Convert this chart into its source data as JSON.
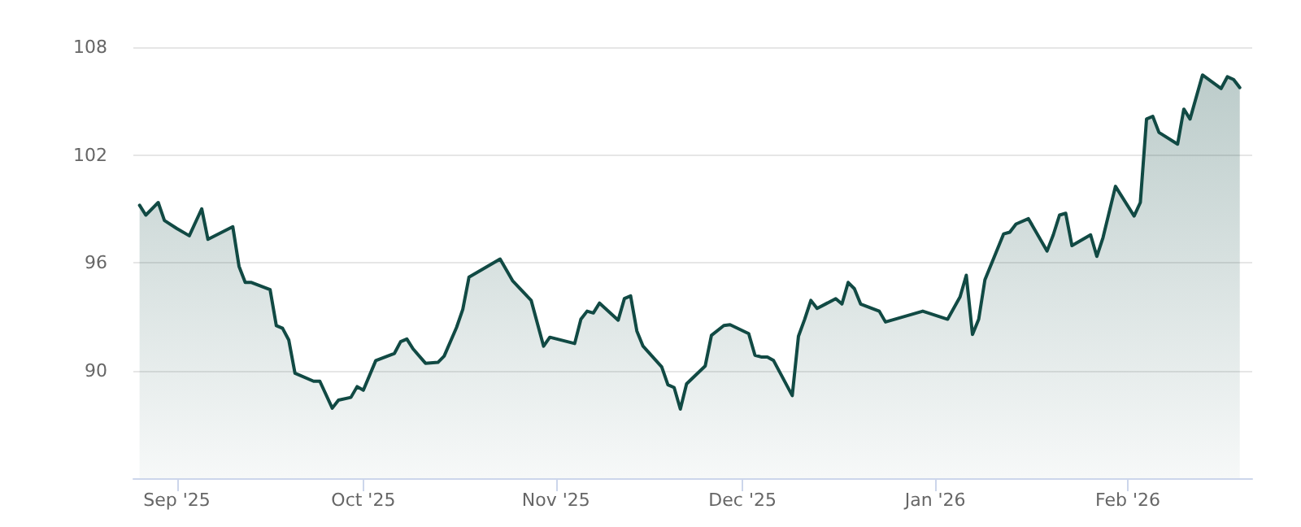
{
  "chart_data": {
    "type": "area",
    "x": [
      "2025-08-26",
      "2025-08-27",
      "2025-08-29",
      "2025-08-30",
      "2025-09-01",
      "2025-09-03",
      "2025-09-05",
      "2025-09-06",
      "2025-09-10",
      "2025-09-11",
      "2025-09-12",
      "2025-09-13",
      "2025-09-16",
      "2025-09-17",
      "2025-09-18",
      "2025-09-19",
      "2025-09-20",
      "2025-09-23",
      "2025-09-24",
      "2025-09-26",
      "2025-09-27",
      "2025-09-29",
      "2025-09-30",
      "2025-10-01",
      "2025-10-03",
      "2025-10-06",
      "2025-10-07",
      "2025-10-08",
      "2025-10-09",
      "2025-10-11",
      "2025-10-13",
      "2025-10-14",
      "2025-10-16",
      "2025-10-17",
      "2025-10-18",
      "2025-10-23",
      "2025-10-25",
      "2025-10-28",
      "2025-10-30",
      "2025-10-31",
      "2025-11-04",
      "2025-11-05",
      "2025-11-06",
      "2025-11-07",
      "2025-11-08",
      "2025-11-11",
      "2025-11-12",
      "2025-11-13",
      "2025-11-14",
      "2025-11-15",
      "2025-11-18",
      "2025-11-19",
      "2025-11-20",
      "2025-11-21",
      "2025-11-22",
      "2025-11-25",
      "2025-11-26",
      "2025-11-28",
      "2025-11-29",
      "2025-12-02",
      "2025-12-03",
      "2025-12-04",
      "2025-12-05",
      "2025-12-06",
      "2025-12-09",
      "2025-12-10",
      "2025-12-11",
      "2025-12-12",
      "2025-12-13",
      "2025-12-16",
      "2025-12-17",
      "2025-12-18",
      "2025-12-19",
      "2025-12-20",
      "2025-12-23",
      "2025-12-24",
      "2025-12-30",
      "2026-01-03",
      "2026-01-05",
      "2026-01-06",
      "2026-01-07",
      "2026-01-08",
      "2026-01-09",
      "2026-01-12",
      "2026-01-13",
      "2026-01-14",
      "2026-01-16",
      "2026-01-19",
      "2026-01-20",
      "2026-01-21",
      "2026-01-22",
      "2026-01-23",
      "2026-01-26",
      "2026-01-27",
      "2026-01-28",
      "2026-01-30",
      "2026-02-02",
      "2026-02-03",
      "2026-02-04",
      "2026-02-05",
      "2026-02-06",
      "2026-02-09",
      "2026-02-10",
      "2026-02-11",
      "2026-02-13",
      "2026-02-16",
      "2026-02-17",
      "2026-02-18",
      "2026-02-19"
    ],
    "series": [
      {
        "color": "#114a44",
        "values": [
          99.2,
          98.65,
          99.35,
          98.35,
          97.9,
          97.5,
          99.0,
          97.3,
          98.0,
          95.8,
          94.9,
          94.9,
          94.5,
          92.5,
          92.35,
          91.7,
          89.85,
          89.4,
          89.4,
          87.9,
          88.35,
          88.5,
          89.1,
          88.9,
          90.55,
          90.95,
          91.6,
          91.75,
          91.2,
          90.4,
          90.45,
          90.8,
          92.4,
          93.4,
          95.2,
          96.2,
          95.0,
          93.9,
          91.35,
          91.85,
          91.5,
          92.85,
          93.3,
          93.2,
          93.75,
          92.8,
          94.0,
          94.15,
          92.2,
          91.35,
          90.2,
          89.2,
          89.05,
          87.85,
          89.25,
          90.25,
          91.95,
          92.5,
          92.55,
          92.05,
          90.85,
          90.75,
          90.75,
          90.55,
          88.6,
          91.9,
          92.85,
          93.9,
          93.45,
          94.0,
          93.7,
          94.9,
          94.55,
          93.7,
          93.3,
          92.7,
          93.3,
          92.85,
          94.1,
          95.3,
          92.0,
          92.85,
          95.05,
          97.6,
          97.7,
          98.15,
          98.45,
          96.65,
          97.55,
          98.65,
          98.75,
          96.95,
          97.55,
          96.35,
          97.4,
          100.25,
          98.6,
          99.35,
          104.0,
          104.15,
          103.25,
          102.6,
          104.55,
          104.0,
          106.45,
          105.7,
          106.35,
          106.2,
          105.75
        ]
      }
    ],
    "xlim": [
      "2025-08-25",
      "2026-02-21"
    ],
    "xticks": [
      {
        "value": "2025-09-01",
        "label": "Sep '25"
      },
      {
        "value": "2025-10-01",
        "label": "Oct '25"
      },
      {
        "value": "2025-11-01",
        "label": "Nov '25"
      },
      {
        "value": "2025-12-01",
        "label": "Dec '25"
      },
      {
        "value": "2026-01-01",
        "label": "Jan '26"
      },
      {
        "value": "2026-02-01",
        "label": "Feb '26"
      }
    ],
    "ylim": [
      84,
      108
    ],
    "yticks": [
      90,
      96,
      102,
      108
    ],
    "grid": "y",
    "marker": "none",
    "line_style": "solid"
  }
}
